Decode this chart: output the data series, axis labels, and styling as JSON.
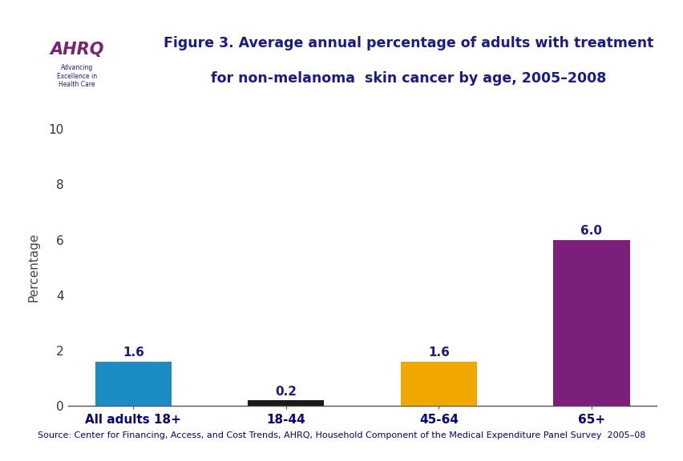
{
  "categories": [
    "All adults 18+",
    "18-44",
    "45-64",
    "65+"
  ],
  "values": [
    1.6,
    0.2,
    1.6,
    6.0
  ],
  "bar_colors": [
    "#1b8cc4",
    "#1a1a1a",
    "#f0a800",
    "#7b1f7a"
  ],
  "ylabel": "Percentage",
  "ylim": [
    0,
    10
  ],
  "yticks": [
    0,
    2,
    4,
    6,
    8,
    10
  ],
  "title_line1": "Figure 3. Average annual percentage of adults with treatment",
  "title_line2": "for non-melanoma  skin cancer by age, 2005–2008",
  "title_color": "#1a1a8c",
  "source_text": "Source: Center for Financing, Access, and Cost Trends, AHRQ, Household Component of the Medical Expenditure Panel Survey  2005–08",
  "background_color": "#ffffff",
  "header_line_color": "#00008b",
  "label_color": "#00008b",
  "value_label_color": "#1a1a8c",
  "bar_width": 0.5,
  "top_border_color": "#00008b",
  "logo_bg": "#cce0f0",
  "logo_border_color": "#1a1a8c"
}
